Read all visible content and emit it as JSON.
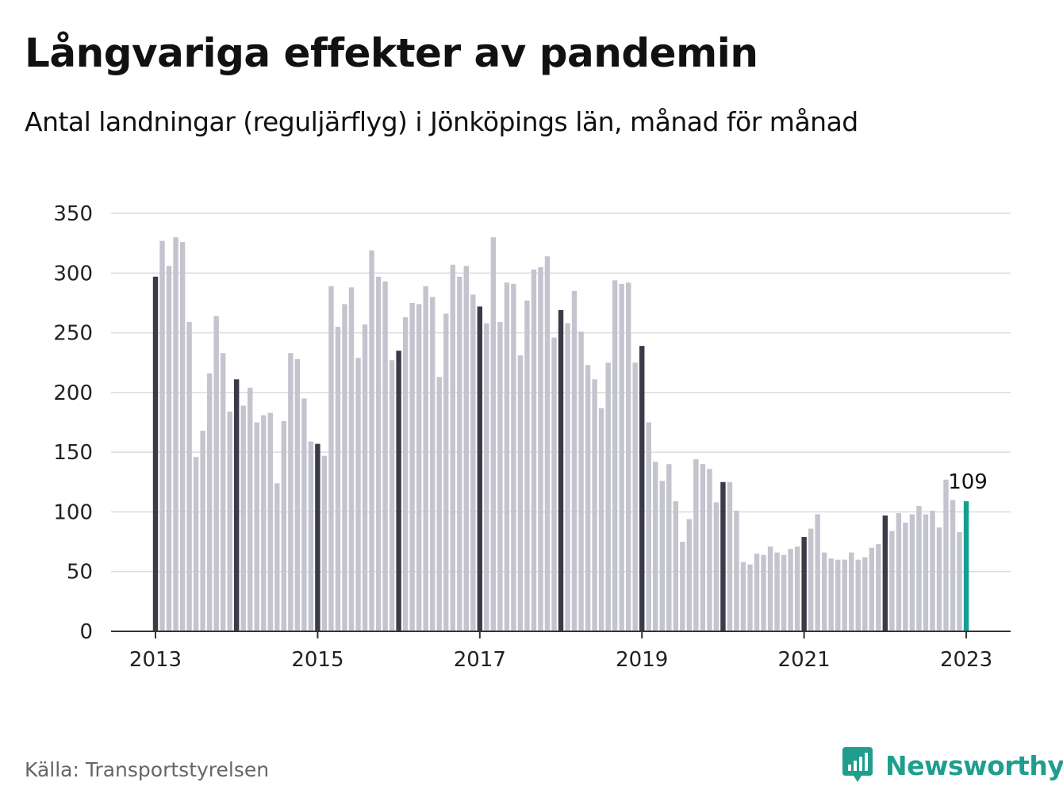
{
  "title": "Långvariga effekter av pandemin",
  "subtitle": "Antal landningar (reguljärflyg) i Jönköpings län, månad för månad",
  "source": "Källa: Transportstyrelsen",
  "brand": {
    "name": "Newsworthy",
    "icon": "newsworthy-logo-icon",
    "color": "#1f9e8e"
  },
  "colors": {
    "bar": "#c4c4cf",
    "january": "#3a3a48",
    "latest": "#159e8f",
    "grid": "#dcdcdc",
    "axis": "#333333"
  },
  "chart_data": {
    "type": "bar",
    "title": "Långvariga effekter av pandemin",
    "subtitle": "Antal landningar (reguljärflyg) i Jönköpings län, månad för månad",
    "x_start": "2013-01",
    "x_end": "2023-01",
    "x_ticks": [
      "2013",
      "2015",
      "2017",
      "2019",
      "2021",
      "2023"
    ],
    "ylim": [
      0,
      350
    ],
    "y_ticks": [
      0,
      50,
      100,
      150,
      200,
      250,
      300,
      350
    ],
    "grid": true,
    "highlight": "January bars dark; latest month teal",
    "values": [
      297,
      327,
      306,
      330,
      326,
      259,
      146,
      168,
      216,
      264,
      233,
      184,
      211,
      189,
      204,
      175,
      181,
      183,
      124,
      176,
      233,
      228,
      195,
      159,
      157,
      147,
      289,
      255,
      274,
      288,
      229,
      257,
      319,
      297,
      293,
      227,
      235,
      263,
      275,
      274,
      289,
      280,
      213,
      266,
      307,
      297,
      306,
      282,
      272,
      258,
      330,
      259,
      292,
      291,
      231,
      277,
      303,
      305,
      314,
      246,
      269,
      258,
      285,
      251,
      223,
      211,
      187,
      225,
      294,
      291,
      292,
      225,
      239,
      175,
      142,
      126,
      140,
      109,
      75,
      94,
      144,
      140,
      136,
      108,
      125,
      125,
      101,
      58,
      56,
      65,
      64,
      71,
      66,
      64,
      69,
      71,
      79,
      86,
      98,
      66,
      61,
      60,
      60,
      66,
      60,
      62,
      70,
      73,
      97,
      84,
      99,
      91,
      98,
      105,
      98,
      101,
      87,
      127,
      110,
      83,
      109
    ],
    "annotation": {
      "label": "109",
      "value": 109,
      "month": "2023-01"
    }
  }
}
